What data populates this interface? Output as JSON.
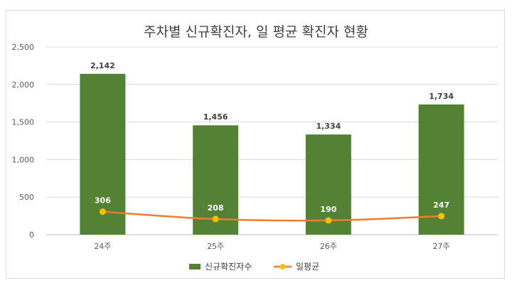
{
  "chart_data": {
    "type": "bar",
    "title": "주차별 신규확진자, 일 평균 확진자 현황",
    "categories": [
      "24주",
      "25주",
      "26주",
      "27주"
    ],
    "series": [
      {
        "name": "신규확진자수",
        "type": "bar",
        "color": "#548235",
        "values": [
          2142,
          1456,
          1334,
          1734
        ],
        "labels": [
          "2,142",
          "1,456",
          "1,334",
          "1,734"
        ]
      },
      {
        "name": "일평균",
        "type": "line",
        "color": "#ed7d31",
        "marker_color": "#ffc000",
        "values": [
          306,
          208,
          190,
          247
        ],
        "labels": [
          "306",
          "208",
          "190",
          "247"
        ]
      }
    ],
    "ylim": [
      0,
      2500
    ],
    "yticks": [
      0,
      500,
      1000,
      1500,
      2000,
      2500
    ],
    "ytick_labels": [
      "0",
      "500",
      "1,000",
      "1,500",
      "2,000",
      "2,500"
    ],
    "grid": true,
    "legend": "bottom"
  }
}
